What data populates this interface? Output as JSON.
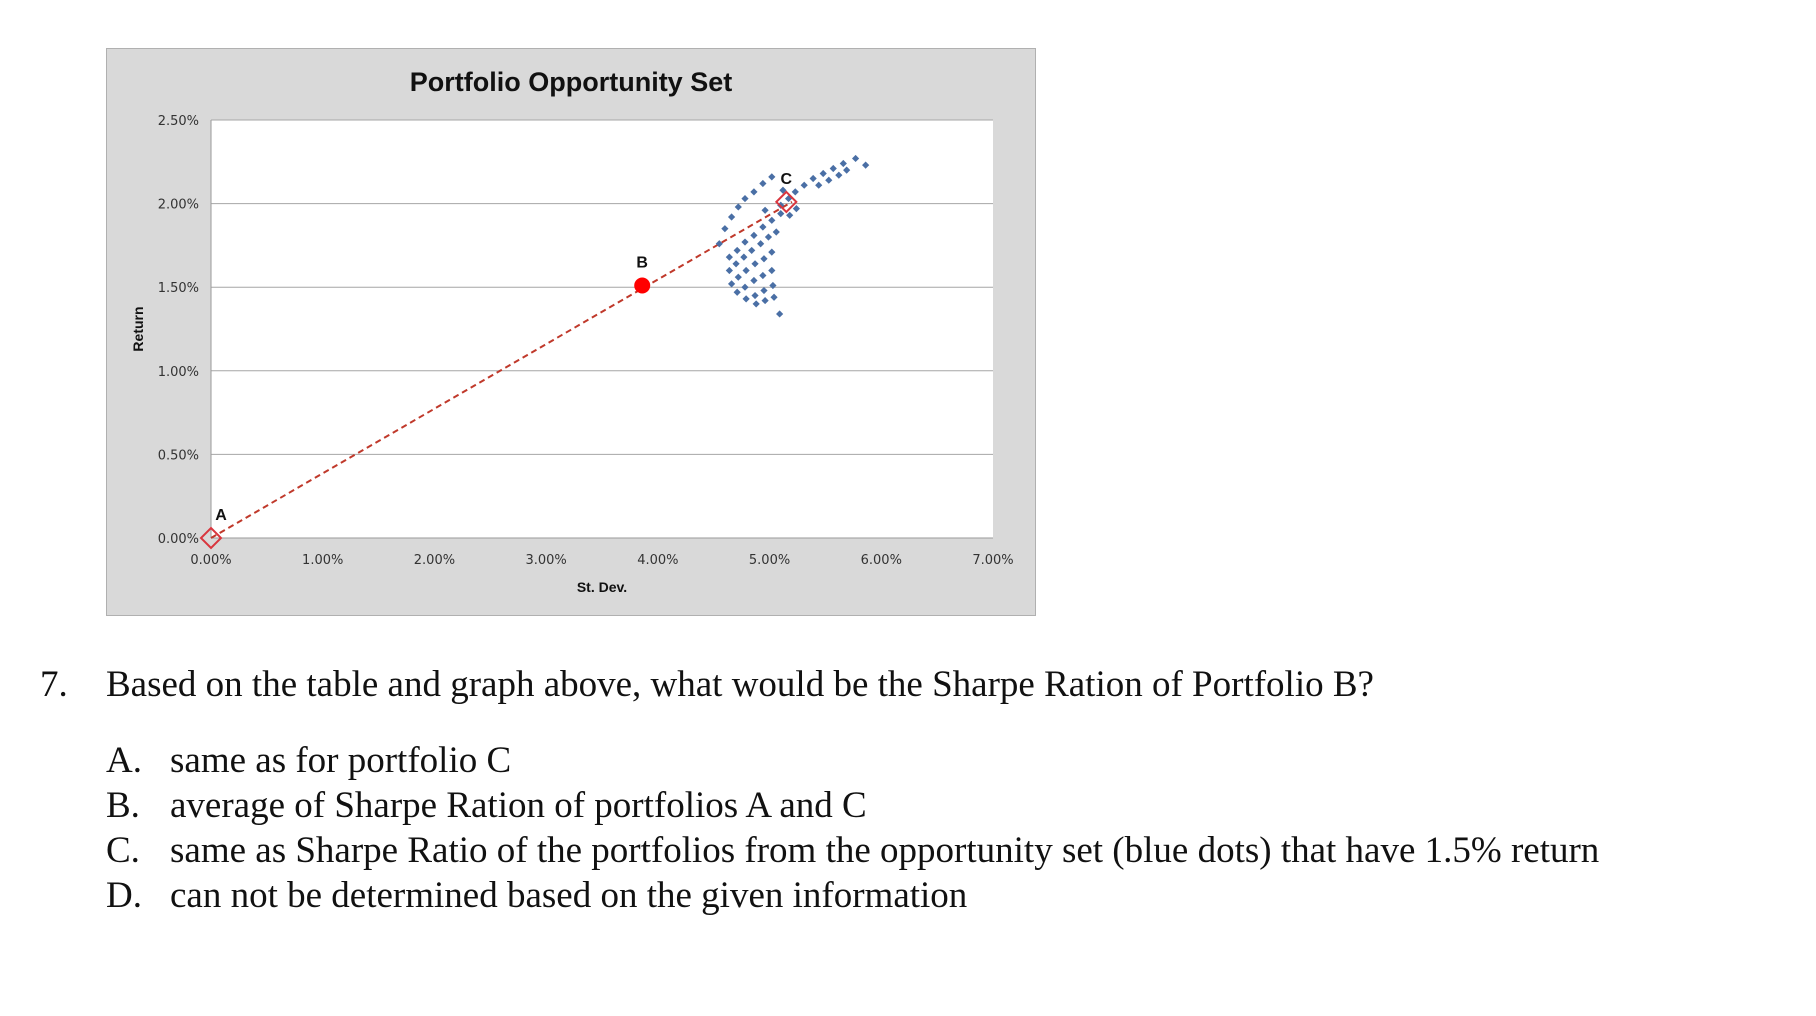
{
  "chart_data": {
    "type": "scatter",
    "title": "Portfolio Opportunity Set",
    "xlabel": "St. Dev.",
    "ylabel": "Return",
    "xlim": [
      0,
      0.07
    ],
    "ylim": [
      0,
      0.025
    ],
    "x_ticks": [
      "0.00%",
      "1.00%",
      "2.00%",
      "3.00%",
      "4.00%",
      "5.00%",
      "6.00%",
      "7.00%"
    ],
    "y_ticks": [
      "0.00%",
      "0.50%",
      "1.00%",
      "1.50%",
      "2.00%",
      "2.50%"
    ],
    "grid": "horizontal",
    "series": [
      {
        "values": [
          [
            0.0455,
            0.0176
          ],
          [
            0.046,
            0.0185
          ],
          [
            0.0466,
            0.0192
          ],
          [
            0.0472,
            0.0198
          ],
          [
            0.0478,
            0.0203
          ],
          [
            0.0486,
            0.0207
          ],
          [
            0.0494,
            0.0212
          ],
          [
            0.0502,
            0.0216
          ],
          [
            0.051,
            0.0199
          ],
          [
            0.0517,
            0.0203
          ],
          [
            0.0523,
            0.0207
          ],
          [
            0.0531,
            0.0211
          ],
          [
            0.0539,
            0.0215
          ],
          [
            0.0548,
            0.0218
          ],
          [
            0.0557,
            0.0221
          ],
          [
            0.0566,
            0.0224
          ],
          [
            0.0577,
            0.0227
          ],
          [
            0.0586,
            0.0223
          ],
          [
            0.0464,
            0.0168
          ],
          [
            0.0471,
            0.0172
          ],
          [
            0.0478,
            0.0177
          ],
          [
            0.0486,
            0.0181
          ],
          [
            0.0494,
            0.0186
          ],
          [
            0.0502,
            0.019
          ],
          [
            0.051,
            0.0194
          ],
          [
            0.0464,
            0.016
          ],
          [
            0.047,
            0.0164
          ],
          [
            0.0477,
            0.0168
          ],
          [
            0.0484,
            0.0172
          ],
          [
            0.0492,
            0.0176
          ],
          [
            0.0499,
            0.018
          ],
          [
            0.0506,
            0.0183
          ],
          [
            0.0466,
            0.0152
          ],
          [
            0.0472,
            0.0156
          ],
          [
            0.0479,
            0.016
          ],
          [
            0.0487,
            0.0164
          ],
          [
            0.0495,
            0.0167
          ],
          [
            0.0502,
            0.0171
          ],
          [
            0.0471,
            0.0147
          ],
          [
            0.0478,
            0.015
          ],
          [
            0.0486,
            0.0154
          ],
          [
            0.0494,
            0.0157
          ],
          [
            0.0502,
            0.016
          ],
          [
            0.0479,
            0.0143
          ],
          [
            0.0487,
            0.0145
          ],
          [
            0.0495,
            0.0148
          ],
          [
            0.0503,
            0.0151
          ],
          [
            0.0488,
            0.014
          ],
          [
            0.0496,
            0.0142
          ],
          [
            0.0504,
            0.0144
          ],
          [
            0.0509,
            0.0134
          ],
          [
            0.0518,
            0.0193
          ],
          [
            0.0524,
            0.0197
          ],
          [
            0.0496,
            0.0196
          ],
          [
            0.0512,
            0.0208
          ],
          [
            0.0544,
            0.0211
          ],
          [
            0.0553,
            0.0214
          ],
          [
            0.0562,
            0.0217
          ],
          [
            0.0569,
            0.022
          ]
        ]
      }
    ],
    "capital_line": {
      "from": [
        0.0,
        0.0
      ],
      "to": [
        0.052,
        0.0201
      ],
      "style": "dashed",
      "color": "#c0392b"
    },
    "labeled_points": [
      {
        "label": "A",
        "x": 0.0,
        "y": 0.0,
        "marker": "hollow-diamond",
        "color": "#d9363e"
      },
      {
        "label": "B",
        "x": 0.0386,
        "y": 0.0151,
        "marker": "filled-circle",
        "color": "#ff0000"
      },
      {
        "label": "C",
        "x": 0.0515,
        "y": 0.0201,
        "marker": "hollow-diamond",
        "color": "#d9363e"
      }
    ],
    "colors": {
      "series": "#4a6fa5",
      "frame": "#d9d9d9",
      "plot_area": "#ffffff"
    }
  },
  "question": {
    "number": "7.",
    "text": "Based on the table and graph above, what would be the Sharpe Ration of Portfolio B?",
    "options": [
      {
        "letter": "A.",
        "text": "same as for portfolio C"
      },
      {
        "letter": "B.",
        "text": "average of Sharpe Ration of portfolios A and C"
      },
      {
        "letter": "C.",
        "text": "same as Sharpe Ratio of the portfolios from the opportunity set (blue dots) that have 1.5% return"
      },
      {
        "letter": "D.",
        "text": "can not be determined based on the given information"
      }
    ]
  }
}
